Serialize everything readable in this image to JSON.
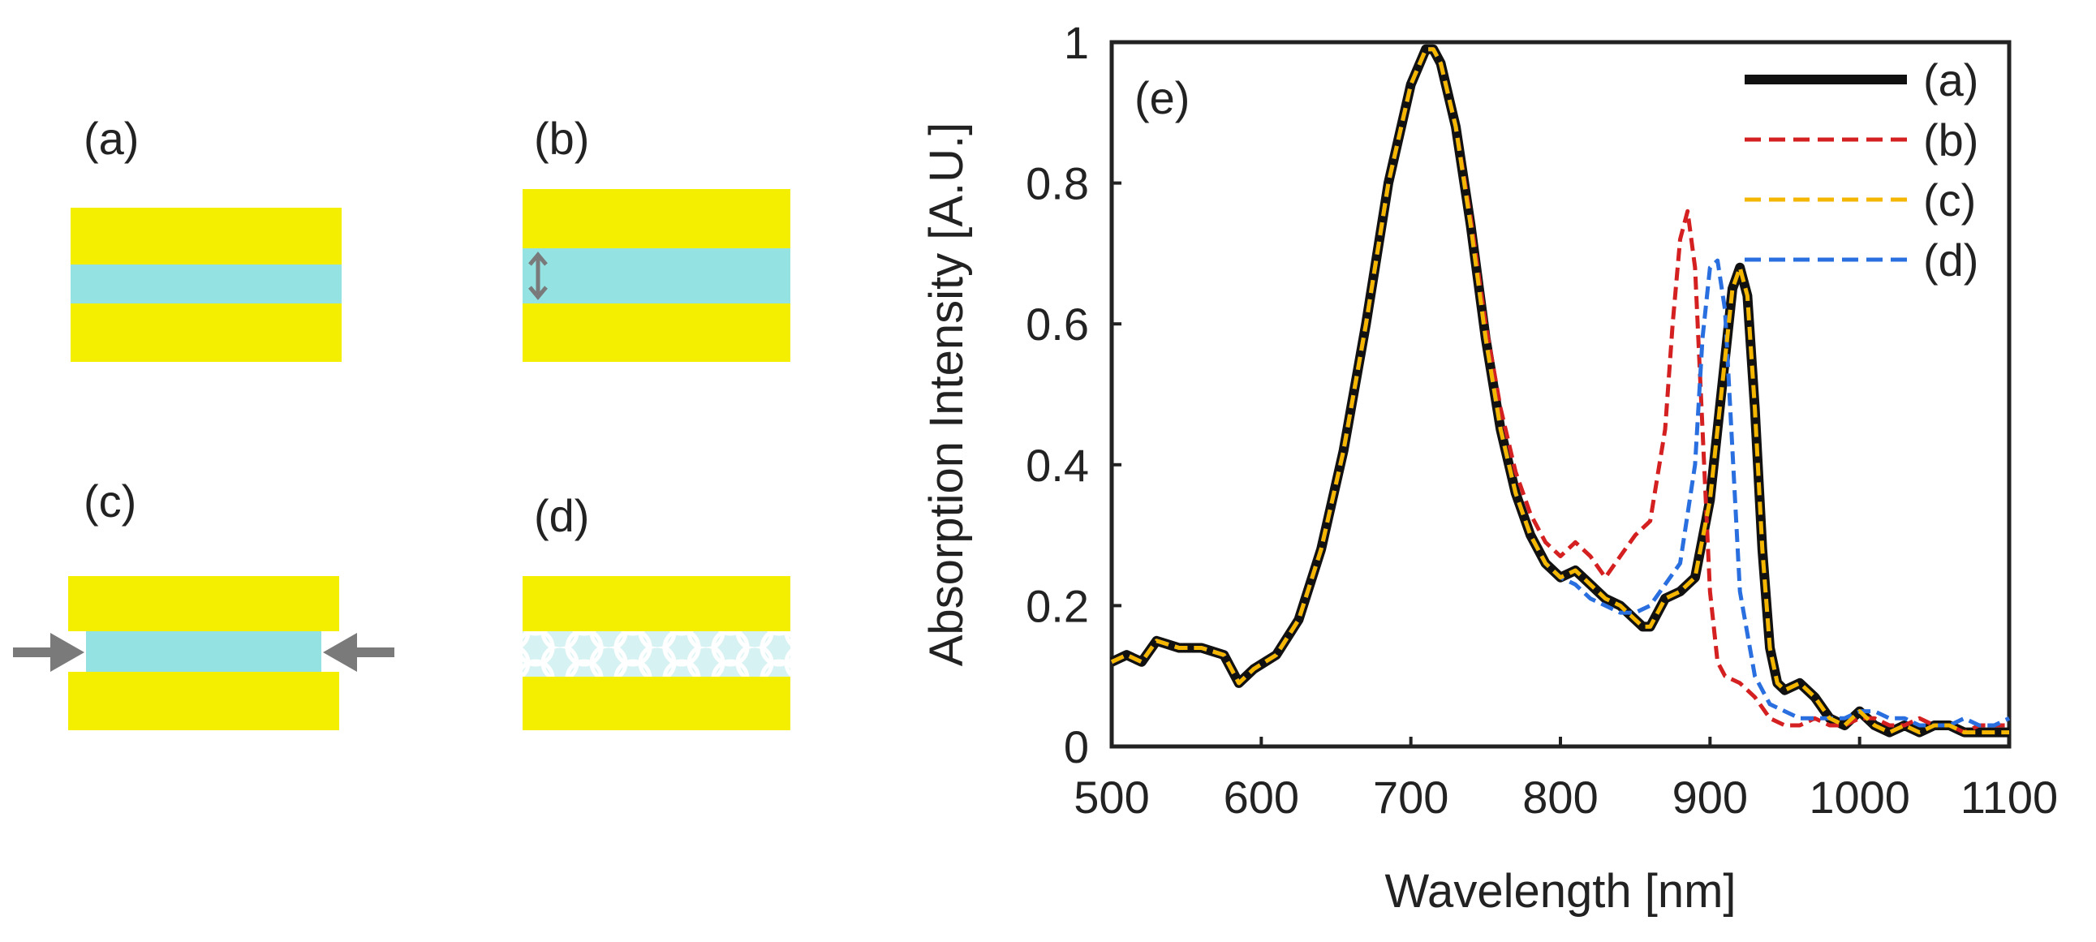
{
  "schematics": {
    "labels": [
      "(a)",
      "(b)",
      "(c)",
      "(d)"
    ],
    "colors": {
      "metal": "#f4ee00",
      "dielectric": "#94e2e2",
      "arrow": "#7a7a7a"
    }
  },
  "chart_data": {
    "type": "line",
    "panel_label": "(e)",
    "title": "",
    "xlabel": "Wavelength [nm]",
    "ylabel": "Absorption Intensity [A.U.]",
    "xlim": [
      500,
      1100
    ],
    "ylim": [
      0,
      1
    ],
    "x_ticks": [
      "500",
      "600",
      "700",
      "800",
      "900",
      "1000",
      "1100"
    ],
    "y_ticks": [
      "0",
      "0.2",
      "0.4",
      "0.6",
      "0.8",
      "1"
    ],
    "x_tick_values": [
      500,
      600,
      700,
      800,
      900,
      1000,
      1100
    ],
    "y_tick_values": [
      0,
      0.2,
      0.4,
      0.6,
      0.8,
      1
    ],
    "grid": false,
    "legend_position": "top-right",
    "series": [
      {
        "name": "(a)",
        "style": "solid",
        "color": "#111111",
        "x": [
          500,
          510,
          520,
          530,
          545,
          560,
          575,
          585,
          595,
          610,
          625,
          640,
          655,
          670,
          685,
          700,
          710,
          715,
          720,
          730,
          740,
          750,
          760,
          770,
          780,
          790,
          800,
          810,
          820,
          830,
          840,
          850,
          855,
          860,
          865,
          870,
          880,
          890,
          900,
          910,
          915,
          920,
          925,
          930,
          935,
          940,
          945,
          950,
          960,
          970,
          980,
          990,
          1000,
          1010,
          1020,
          1030,
          1040,
          1050,
          1060,
          1070,
          1080,
          1090,
          1100
        ],
        "y": [
          0.12,
          0.13,
          0.12,
          0.15,
          0.14,
          0.14,
          0.13,
          0.09,
          0.11,
          0.13,
          0.18,
          0.28,
          0.42,
          0.6,
          0.8,
          0.94,
          0.99,
          0.99,
          0.97,
          0.88,
          0.74,
          0.58,
          0.45,
          0.36,
          0.3,
          0.26,
          0.24,
          0.25,
          0.23,
          0.21,
          0.2,
          0.18,
          0.17,
          0.17,
          0.19,
          0.21,
          0.22,
          0.24,
          0.35,
          0.55,
          0.65,
          0.68,
          0.64,
          0.48,
          0.28,
          0.14,
          0.09,
          0.08,
          0.09,
          0.07,
          0.04,
          0.03,
          0.05,
          0.03,
          0.02,
          0.03,
          0.02,
          0.03,
          0.03,
          0.02,
          0.02,
          0.02,
          0.02
        ]
      },
      {
        "name": "(b)",
        "style": "dashed",
        "color": "#d42020",
        "x": [
          500,
          510,
          520,
          530,
          545,
          560,
          575,
          585,
          595,
          610,
          625,
          640,
          655,
          670,
          685,
          700,
          710,
          715,
          720,
          730,
          740,
          750,
          760,
          770,
          780,
          790,
          800,
          810,
          820,
          830,
          840,
          850,
          860,
          870,
          875,
          880,
          885,
          890,
          895,
          900,
          905,
          910,
          920,
          930,
          940,
          950,
          960,
          970,
          980,
          990,
          1000,
          1010,
          1020,
          1030,
          1040,
          1050,
          1060,
          1070,
          1080,
          1090,
          1100
        ],
        "y": [
          0.12,
          0.13,
          0.12,
          0.15,
          0.14,
          0.14,
          0.13,
          0.09,
          0.11,
          0.13,
          0.18,
          0.28,
          0.42,
          0.6,
          0.8,
          0.94,
          0.99,
          0.99,
          0.97,
          0.88,
          0.75,
          0.6,
          0.48,
          0.39,
          0.33,
          0.29,
          0.27,
          0.29,
          0.27,
          0.24,
          0.27,
          0.3,
          0.32,
          0.45,
          0.6,
          0.72,
          0.76,
          0.68,
          0.45,
          0.22,
          0.12,
          0.1,
          0.09,
          0.07,
          0.04,
          0.03,
          0.03,
          0.04,
          0.03,
          0.03,
          0.04,
          0.04,
          0.03,
          0.03,
          0.04,
          0.03,
          0.03,
          0.02,
          0.03,
          0.03,
          0.03
        ]
      },
      {
        "name": "(c)",
        "style": "dashed",
        "color": "#f5b600",
        "x": [
          500,
          510,
          520,
          530,
          545,
          560,
          575,
          585,
          595,
          610,
          625,
          640,
          655,
          670,
          685,
          700,
          710,
          715,
          720,
          730,
          740,
          750,
          760,
          770,
          780,
          790,
          800,
          810,
          820,
          830,
          840,
          850,
          855,
          860,
          865,
          870,
          880,
          890,
          900,
          910,
          915,
          920,
          925,
          930,
          935,
          940,
          945,
          950,
          960,
          970,
          980,
          990,
          1000,
          1010,
          1020,
          1030,
          1040,
          1050,
          1060,
          1070,
          1080,
          1090,
          1100
        ],
        "y": [
          0.12,
          0.13,
          0.12,
          0.15,
          0.14,
          0.14,
          0.13,
          0.09,
          0.11,
          0.13,
          0.18,
          0.28,
          0.42,
          0.6,
          0.8,
          0.94,
          0.99,
          0.99,
          0.97,
          0.88,
          0.74,
          0.58,
          0.45,
          0.36,
          0.3,
          0.26,
          0.24,
          0.25,
          0.23,
          0.21,
          0.2,
          0.18,
          0.17,
          0.17,
          0.19,
          0.21,
          0.22,
          0.24,
          0.35,
          0.55,
          0.65,
          0.68,
          0.64,
          0.48,
          0.28,
          0.14,
          0.09,
          0.08,
          0.09,
          0.07,
          0.04,
          0.03,
          0.05,
          0.03,
          0.02,
          0.03,
          0.02,
          0.03,
          0.03,
          0.02,
          0.02,
          0.02,
          0.02
        ]
      },
      {
        "name": "(d)",
        "style": "dashed",
        "color": "#2a6fe0",
        "x": [
          500,
          510,
          520,
          530,
          545,
          560,
          575,
          585,
          595,
          610,
          625,
          640,
          655,
          670,
          685,
          700,
          710,
          715,
          720,
          730,
          740,
          750,
          760,
          770,
          780,
          790,
          800,
          810,
          820,
          830,
          840,
          850,
          860,
          870,
          880,
          890,
          895,
          900,
          905,
          910,
          915,
          920,
          930,
          940,
          950,
          960,
          970,
          980,
          990,
          1000,
          1010,
          1020,
          1030,
          1040,
          1050,
          1060,
          1070,
          1080,
          1090,
          1100
        ],
        "y": [
          0.12,
          0.13,
          0.12,
          0.15,
          0.14,
          0.14,
          0.13,
          0.09,
          0.11,
          0.13,
          0.18,
          0.28,
          0.42,
          0.6,
          0.8,
          0.94,
          0.99,
          0.99,
          0.97,
          0.88,
          0.74,
          0.58,
          0.45,
          0.36,
          0.3,
          0.26,
          0.24,
          0.23,
          0.21,
          0.2,
          0.19,
          0.19,
          0.2,
          0.23,
          0.26,
          0.4,
          0.58,
          0.68,
          0.69,
          0.62,
          0.42,
          0.22,
          0.1,
          0.06,
          0.05,
          0.04,
          0.04,
          0.04,
          0.04,
          0.05,
          0.05,
          0.04,
          0.04,
          0.03,
          0.03,
          0.03,
          0.04,
          0.03,
          0.03,
          0.04
        ]
      }
    ]
  }
}
